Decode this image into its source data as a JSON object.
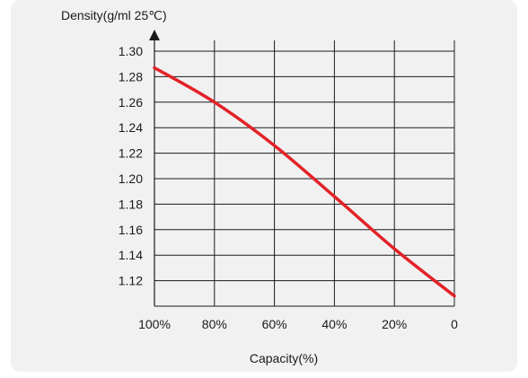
{
  "chart_data": {
    "type": "line",
    "ylabel": "Density(g/ml 25℃)",
    "xlabel": "Capacity(%)",
    "y_ticks": [
      "1.30",
      "1.28",
      "1.26",
      "1.24",
      "1.22",
      "1.20",
      "1.18",
      "1.16",
      "1.14",
      "1.12"
    ],
    "x_ticks": [
      "100%",
      "80%",
      "60%",
      "40%",
      "20%",
      "0"
    ],
    "ylim": [
      1.1,
      1.3
    ],
    "xlim": [
      100,
      0
    ],
    "grid": true,
    "series": [
      {
        "color": "#e32228",
        "x": [
          100,
          80,
          60,
          40,
          20,
          0
        ],
        "y": [
          1.287,
          1.26,
          1.226,
          1.186,
          1.145,
          1.108
        ]
      }
    ]
  }
}
